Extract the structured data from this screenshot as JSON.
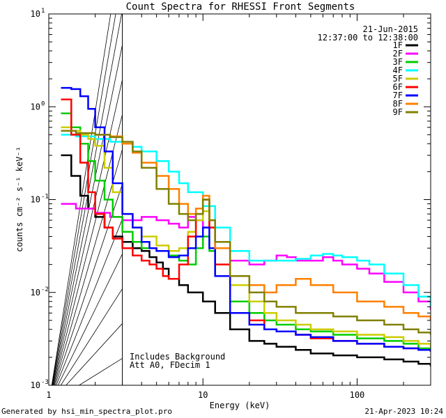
{
  "chart_data": {
    "type": "line",
    "title": "Count Spectra for RHESSI Front Segments",
    "xlabel": "Energy (keV)",
    "ylabel": "counts cm⁻² s⁻¹ keV⁻¹",
    "xscale": "log",
    "yscale": "log",
    "xlim": [
      1.0,
      300
    ],
    "ylim": [
      0.001,
      10
    ],
    "grid": false,
    "x_ticks": [
      {
        "value": 1,
        "label": "1"
      },
      {
        "value": 10,
        "label": "10"
      },
      {
        "value": 100,
        "label": "100"
      }
    ],
    "y_ticks": [
      {
        "value": 10,
        "base": "10",
        "exp": "1"
      },
      {
        "value": 1,
        "base": "10",
        "exp": "0"
      },
      {
        "value": 0.1,
        "base": "10",
        "exp": "-1"
      },
      {
        "value": 0.01,
        "base": "10",
        "exp": "-2"
      },
      {
        "value": 0.001,
        "base": "10",
        "exp": "-3"
      }
    ],
    "attenuator_region": {
      "x_min": 1.0,
      "x_max": 3.0
    },
    "legend": {
      "placement": "top-right",
      "date": "21-Jun-2015",
      "time_range": "12:37:00 to 12:38:00"
    },
    "annotations": [
      "Includes Background",
      "Att A0, FDecim 1"
    ],
    "footer_left": "Generated by hsi_min_spectra_plot.pro",
    "footer_right": "21-Apr-2023 10:24",
    "series": [
      {
        "name": "1F",
        "color": "#000000",
        "x": [
          1.2,
          1.4,
          1.6,
          1.8,
          2.0,
          2.3,
          2.6,
          3.0,
          3.5,
          4.0,
          4.5,
          5.0,
          5.5,
          6.0,
          7.0,
          8.0,
          10,
          12,
          15,
          20,
          25,
          30,
          40,
          50,
          70,
          100,
          150,
          200,
          250,
          300
        ],
        "y": [
          0.3,
          0.18,
          0.11,
          0.08,
          0.065,
          0.05,
          0.04,
          0.035,
          0.03,
          0.028,
          0.024,
          0.021,
          0.018,
          0.014,
          0.012,
          0.01,
          0.008,
          0.006,
          0.004,
          0.003,
          0.0028,
          0.0026,
          0.0024,
          0.0022,
          0.0021,
          0.002,
          0.0019,
          0.0018,
          0.0017,
          0.0016
        ]
      },
      {
        "name": "2F",
        "color": "#ff00ff",
        "x": [
          1.2,
          1.5,
          2.0,
          2.5,
          3.0,
          4.0,
          5.0,
          6.0,
          7.0,
          8.0,
          9.0,
          10,
          12,
          15,
          20,
          25,
          30,
          35,
          40,
          50,
          60,
          70,
          80,
          100,
          120,
          150,
          200,
          250,
          300
        ],
        "y": [
          0.09,
          0.08,
          0.072,
          0.065,
          0.06,
          0.065,
          0.06,
          0.055,
          0.05,
          0.065,
          0.06,
          0.05,
          0.03,
          0.022,
          0.02,
          0.022,
          0.025,
          0.024,
          0.022,
          0.022,
          0.024,
          0.022,
          0.02,
          0.018,
          0.016,
          0.013,
          0.01,
          0.008,
          0.0065
        ]
      },
      {
        "name": "3F",
        "color": "#00cc00",
        "x": [
          1.2,
          1.4,
          1.6,
          1.8,
          2.0,
          2.3,
          2.6,
          3.0,
          3.5,
          4.0,
          5.0,
          6.0,
          7.0,
          8.0,
          9.0,
          10,
          11,
          12,
          15,
          20,
          25,
          30,
          40,
          50,
          70,
          100,
          150,
          200,
          250,
          300
        ],
        "y": [
          0.85,
          0.6,
          0.4,
          0.26,
          0.16,
          0.1,
          0.065,
          0.045,
          0.035,
          0.03,
          0.028,
          0.025,
          0.022,
          0.02,
          0.03,
          0.04,
          0.028,
          0.015,
          0.008,
          0.006,
          0.005,
          0.0045,
          0.004,
          0.0038,
          0.0035,
          0.0032,
          0.003,
          0.0028,
          0.0025,
          0.0023
        ]
      },
      {
        "name": "4F",
        "color": "#00ffff",
        "x": [
          1.2,
          1.5,
          2.0,
          2.5,
          3.0,
          3.5,
          4.0,
          5.0,
          6.0,
          7.0,
          8.0,
          10,
          12,
          15,
          20,
          30,
          40,
          50,
          60,
          70,
          80,
          100,
          120,
          150,
          200,
          250,
          300
        ],
        "y": [
          0.5,
          0.48,
          0.45,
          0.42,
          0.4,
          0.37,
          0.33,
          0.26,
          0.2,
          0.15,
          0.12,
          0.085,
          0.05,
          0.028,
          0.022,
          0.022,
          0.023,
          0.025,
          0.026,
          0.025,
          0.024,
          0.022,
          0.02,
          0.016,
          0.012,
          0.009,
          0.007
        ]
      },
      {
        "name": "5F",
        "color": "#cccc00",
        "x": [
          1.2,
          1.4,
          1.6,
          1.8,
          2.0,
          2.3,
          2.6,
          3.0,
          3.5,
          4.0,
          5.0,
          6.0,
          7.0,
          8.0,
          9.0,
          10,
          11,
          12,
          15,
          20,
          25,
          30,
          40,
          50,
          70,
          100,
          150,
          200,
          250,
          300
        ],
        "y": [
          0.6,
          0.55,
          0.5,
          0.45,
          0.38,
          0.22,
          0.12,
          0.07,
          0.05,
          0.04,
          0.032,
          0.028,
          0.03,
          0.045,
          0.06,
          0.075,
          0.05,
          0.03,
          0.012,
          0.008,
          0.006,
          0.005,
          0.0045,
          0.004,
          0.0038,
          0.0035,
          0.0033,
          0.003,
          0.0028,
          0.0026
        ]
      },
      {
        "name": "6F",
        "color": "#ff0000",
        "x": [
          1.2,
          1.4,
          1.6,
          1.8,
          2.0,
          2.3,
          2.6,
          3.0,
          3.5,
          4.0,
          4.5,
          5.0,
          5.5,
          6.0,
          7.0,
          8.0,
          9.0,
          10,
          11,
          12,
          15,
          20,
          25,
          30,
          40,
          50,
          70,
          100,
          150,
          200,
          250,
          300
        ],
        "y": [
          1.2,
          0.5,
          0.25,
          0.12,
          0.07,
          0.05,
          0.038,
          0.03,
          0.025,
          0.022,
          0.02,
          0.018,
          0.015,
          0.014,
          0.02,
          0.04,
          0.07,
          0.1,
          0.05,
          0.02,
          0.006,
          0.005,
          0.004,
          0.0038,
          0.0035,
          0.0032,
          0.003,
          0.0028,
          0.0026,
          0.0025,
          0.0024,
          0.0023
        ]
      },
      {
        "name": "7F",
        "color": "#0000ff",
        "x": [
          1.2,
          1.4,
          1.6,
          1.8,
          2.0,
          2.3,
          2.6,
          3.0,
          3.5,
          4.0,
          4.5,
          5.0,
          6.0,
          7.0,
          8.0,
          9.0,
          10,
          11,
          12,
          15,
          20,
          25,
          30,
          40,
          50,
          70,
          100,
          150,
          200,
          250,
          300
        ],
        "y": [
          1.6,
          1.55,
          1.3,
          0.95,
          0.6,
          0.33,
          0.15,
          0.07,
          0.05,
          0.035,
          0.03,
          0.028,
          0.024,
          0.025,
          0.03,
          0.04,
          0.05,
          0.03,
          0.015,
          0.006,
          0.0045,
          0.004,
          0.0038,
          0.0035,
          0.0033,
          0.003,
          0.0028,
          0.0026,
          0.0025,
          0.0024,
          0.0023
        ]
      },
      {
        "name": "8F",
        "color": "#ff8000",
        "x": [
          1.2,
          1.5,
          2.0,
          2.5,
          3.0,
          3.5,
          4.0,
          5.0,
          6.0,
          7.0,
          8.0,
          9.0,
          10,
          11,
          12,
          15,
          20,
          25,
          30,
          40,
          50,
          70,
          100,
          150,
          200,
          250,
          300
        ],
        "y": [
          0.55,
          0.52,
          0.5,
          0.48,
          0.4,
          0.32,
          0.25,
          0.18,
          0.13,
          0.09,
          0.07,
          0.08,
          0.11,
          0.06,
          0.03,
          0.015,
          0.012,
          0.01,
          0.012,
          0.014,
          0.012,
          0.01,
          0.008,
          0.007,
          0.006,
          0.0055,
          0.005
        ]
      },
      {
        "name": "9F",
        "color": "#808000",
        "x": [
          1.2,
          1.5,
          2.0,
          2.5,
          3.0,
          3.5,
          4.0,
          5.0,
          6.0,
          7.0,
          8.0,
          9.0,
          10,
          11,
          12,
          15,
          20,
          25,
          30,
          40,
          50,
          70,
          100,
          150,
          200,
          250,
          300
        ],
        "y": [
          0.55,
          0.52,
          0.5,
          0.47,
          0.42,
          0.33,
          0.22,
          0.13,
          0.09,
          0.07,
          0.06,
          0.07,
          0.1,
          0.06,
          0.035,
          0.015,
          0.01,
          0.008,
          0.007,
          0.006,
          0.006,
          0.0055,
          0.005,
          0.0045,
          0.004,
          0.0037,
          0.0035
        ]
      }
    ]
  }
}
